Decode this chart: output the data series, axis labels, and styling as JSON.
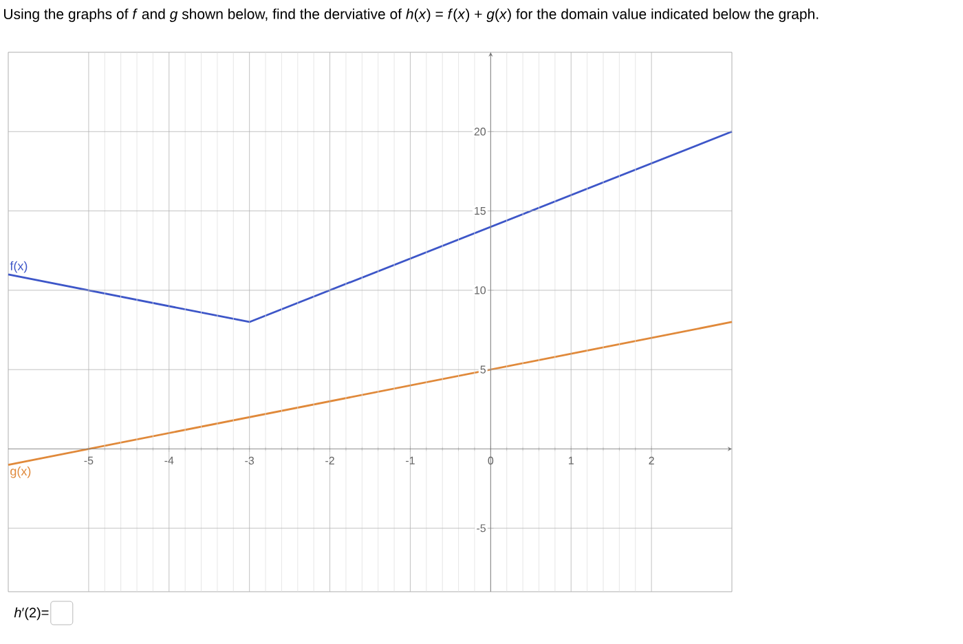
{
  "chart_data": {
    "type": "line",
    "title": "Using the graphs of *f* and *g* shown below, find the derviative of *h*(*x*) = *f*(*x*) + *g*(*x*) for the domain value indicated below the graph.",
    "annotations": [
      "*h*′(2)="
    ],
    "series": [
      {
        "name": "f(x)",
        "color": "#3d56c8",
        "x": [
          -6,
          -3,
          3
        ],
        "values": [
          11,
          8,
          20
        ]
      },
      {
        "name": "g(x)",
        "color": "#e0893a",
        "x": [
          -6,
          3
        ],
        "values": [
          -1,
          8
        ]
      }
    ],
    "xlim": [
      -6,
      3
    ],
    "ylim": [
      -9,
      25
    ],
    "xticks": [
      -5,
      -4,
      -3,
      -2,
      -1,
      0,
      1,
      2
    ],
    "yticks": [
      -5,
      5,
      10,
      15,
      20
    ],
    "grid": true,
    "marker": "none",
    "line_style": "solid"
  }
}
